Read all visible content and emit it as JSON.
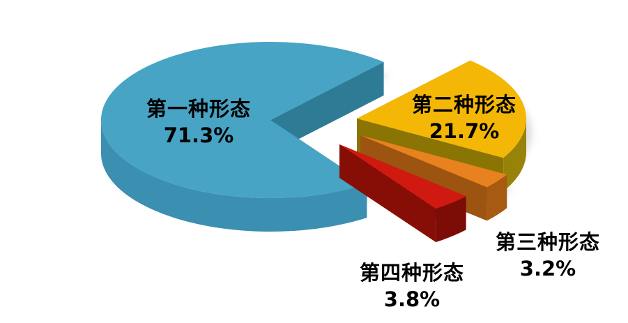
{
  "page": {
    "background_color": "#ffffff",
    "text_color": "#000000"
  },
  "chart_data": {
    "type": "pie",
    "style": "3d-exploded",
    "title": "",
    "legend_position": "none",
    "categories": [
      "第一种形态",
      "第二种形态",
      "第三种形态",
      "第四种形态"
    ],
    "values": [
      71.3,
      21.7,
      3.2,
      3.8
    ],
    "slices": [
      {
        "label": "第一种形态",
        "value": 71.3,
        "percent_label": "71.3%",
        "color_top": "#47A4C4",
        "color_side": "#3B8FB0",
        "color_dark": "#2E7B96"
      },
      {
        "label": "第二种形态",
        "value": 21.7,
        "percent_label": "21.7%",
        "color_top": "#F4B705",
        "color_side": "#97830A",
        "color_dark": "#8A7504"
      },
      {
        "label": "第三种形态",
        "value": 3.2,
        "percent_label": "3.2%",
        "color_top": "#E8821E",
        "color_side": "#A65A12",
        "color_dark": "#9C5410"
      },
      {
        "label": "第四种形态",
        "value": 3.8,
        "percent_label": "3.8%",
        "color_top": "#D01910",
        "color_side": "#7C0C06",
        "color_dark": "#870E07"
      }
    ]
  }
}
